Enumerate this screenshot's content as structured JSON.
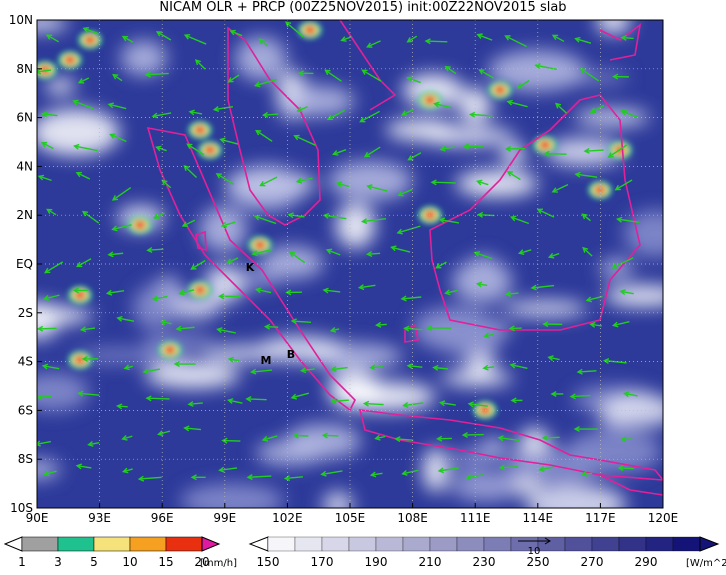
{
  "title": "NICAM OLR + PRCP (00Z25NOV2015) init:00Z22NOV2015 slab",
  "map": {
    "lat_labels": [
      "10N",
      "8N",
      "6N",
      "4N",
      "2N",
      "EQ",
      "2S",
      "4S",
      "6S",
      "8S",
      "10S"
    ],
    "lon_labels": [
      "90E",
      "93E",
      "96E",
      "99E",
      "102E",
      "105E",
      "108E",
      "111E",
      "114E",
      "117E",
      "120E"
    ],
    "stations": [
      "K",
      "M",
      "B"
    ]
  },
  "precip_legend": {
    "labels": [
      "1",
      "3",
      "5",
      "10",
      "15",
      "20"
    ],
    "unit": "[mm/h]"
  },
  "olr_legend": {
    "labels": [
      "150",
      "170",
      "190",
      "210",
      "230",
      "250",
      "270",
      "290"
    ],
    "unit": "[W/m^2]"
  },
  "vector_reference": "10"
}
